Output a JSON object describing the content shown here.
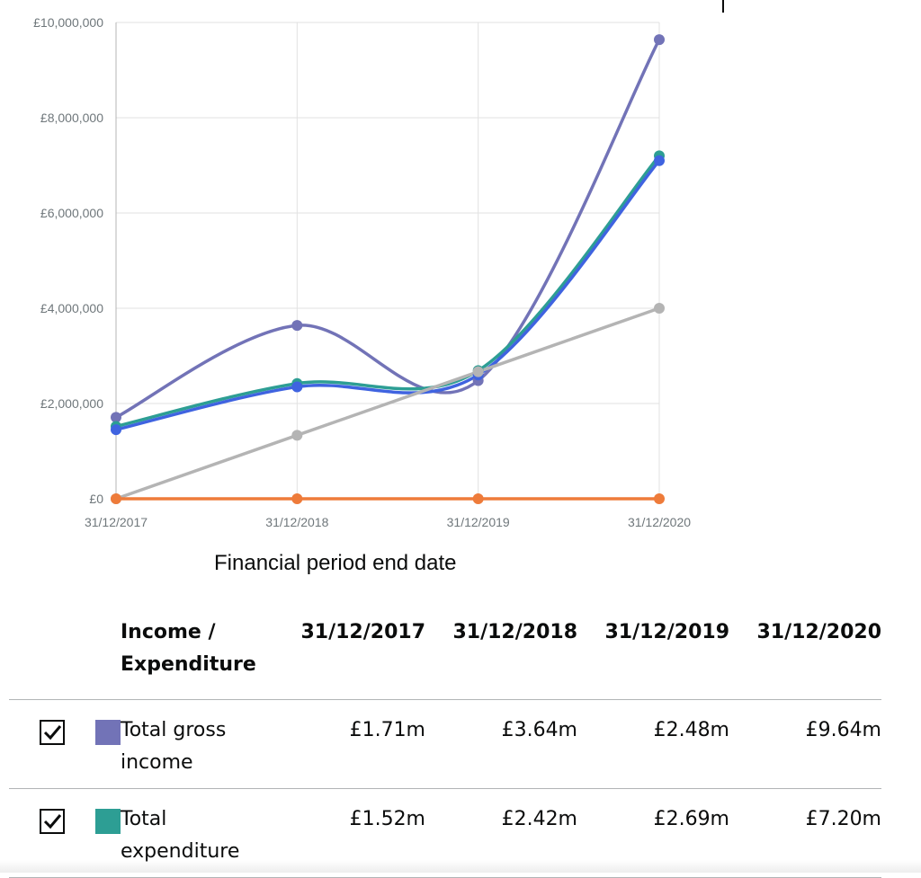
{
  "chart_data": {
    "type": "line",
    "xlabel": "Financial period end date",
    "x": [
      "31/12/2017",
      "31/12/2018",
      "31/12/2019",
      "31/12/2020"
    ],
    "y_ticks": [
      "£0",
      "£2,000,000",
      "£4,000,000",
      "£6,000,000",
      "£8,000,000",
      "£10,000,000"
    ],
    "ylim": [
      0,
      10000000
    ],
    "grid": true,
    "curve": "smooth",
    "series": [
      {
        "color": "#7273b7",
        "values": [
          1710000,
          3640000,
          2480000,
          9640000
        ]
      },
      {
        "color": "#2d9e94",
        "values": [
          1520000,
          2420000,
          2690000,
          7200000
        ]
      },
      {
        "color": "#3f63e0",
        "values": [
          1450000,
          2350000,
          2600000,
          7100000
        ]
      },
      {
        "color": "#b4b4b4",
        "values": [
          0,
          1333333,
          2666667,
          4000000
        ],
        "curve": "straight"
      },
      {
        "color": "#ee7b3a",
        "values": [
          0,
          0,
          0,
          0
        ],
        "curve": "straight"
      }
    ]
  },
  "table": {
    "header_label": "Income / Expenditure",
    "columns": [
      "31/12/2017",
      "31/12/2018",
      "31/12/2019",
      "31/12/2020"
    ],
    "rows": [
      {
        "label": "Total gross income",
        "color": "#7273b7",
        "checked": true,
        "values": [
          "£1.71m",
          "£3.64m",
          "£2.48m",
          "£9.64m"
        ]
      },
      {
        "label": "Total expenditure",
        "color": "#2d9e94",
        "checked": true,
        "values": [
          "£1.52m",
          "£2.42m",
          "£2.69m",
          "£7.20m"
        ]
      }
    ]
  }
}
